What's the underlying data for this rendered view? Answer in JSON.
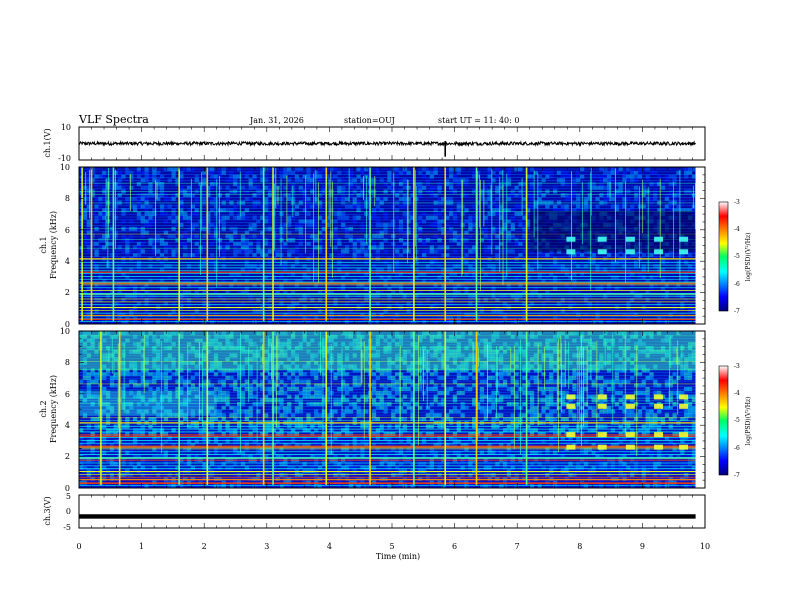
{
  "header": {
    "title": "VLF Spectra",
    "date": "Jan. 31, 2026",
    "station": "station=OUJ",
    "start": "start UT =  11: 40: 0"
  },
  "chart_data": [
    {
      "type": "line",
      "panel": "ch1_waveform",
      "ylabel": "ch.1(V)",
      "ylim": [
        -10,
        10
      ],
      "yticks": [
        "10",
        "-10"
      ],
      "x_range_min": [
        0,
        9.85
      ],
      "description_values": "noise trace around 0 V with amplitude about 1 V, spike near 5.85 min"
    },
    {
      "type": "heatmap",
      "panel": "ch1_spectrogram",
      "ylabel": "ch.1",
      "ylabel2": "Frequency (kHz)",
      "ylim": [
        0,
        10
      ],
      "yticks": [
        "0",
        "2",
        "4",
        "6",
        "8",
        "10"
      ],
      "x_range_min": [
        0,
        9.85
      ],
      "colorbar": {
        "label": "log(PSD)(V²/Hz)",
        "range": [
          -7,
          -3
        ],
        "ticks": [
          "-3",
          "-4",
          "-5",
          "-6",
          "-7"
        ]
      },
      "bright_bursts_min": [
        0.05,
        0.2,
        0.55,
        1.6,
        2.05,
        2.95,
        3.1,
        3.95,
        4.65,
        5.35,
        5.85,
        6.35,
        7.15
      ],
      "periodic_emissions_min": [
        7.85,
        8.35,
        8.8,
        9.25,
        9.65
      ],
      "periodic_emissions_khz": [
        4.6,
        5.4
      ]
    },
    {
      "type": "heatmap",
      "panel": "ch2_spectrogram",
      "ylabel": "ch.2",
      "ylabel2": "Frequency (kHz)",
      "ylim": [
        0,
        10
      ],
      "yticks": [
        "0",
        "2",
        "4",
        "6",
        "8",
        "10"
      ],
      "x_range_min": [
        0,
        9.85
      ],
      "colorbar": {
        "label": "log(PSD)(V²/Hz)",
        "range": [
          -7,
          -3
        ],
        "ticks": [
          "-3",
          "-4",
          "-5",
          "-6",
          "-7"
        ]
      },
      "bright_bursts_min": [
        0.35,
        0.65,
        1.6,
        2.05,
        2.95,
        3.1,
        3.95,
        4.65,
        5.35,
        5.85,
        6.35,
        7.15
      ],
      "periodic_emissions_min": [
        7.85,
        8.35,
        8.8,
        9.25,
        9.65
      ],
      "periodic_emissions_khz": [
        2.6,
        3.4,
        5.2,
        5.8
      ]
    },
    {
      "type": "line",
      "panel": "ch3_waveform",
      "ylabel": "ch.3(V)",
      "ylim": [
        -5,
        5
      ],
      "yticks": [
        "5",
        "0",
        "-5"
      ],
      "x_range_min": [
        0,
        9.85
      ],
      "level_v": -1.5
    }
  ],
  "xaxis": {
    "label": "Time (min)",
    "range": [
      0,
      10
    ],
    "ticks": [
      "0",
      "1",
      "2",
      "3",
      "4",
      "5",
      "6",
      "7",
      "8",
      "9",
      "10"
    ]
  }
}
